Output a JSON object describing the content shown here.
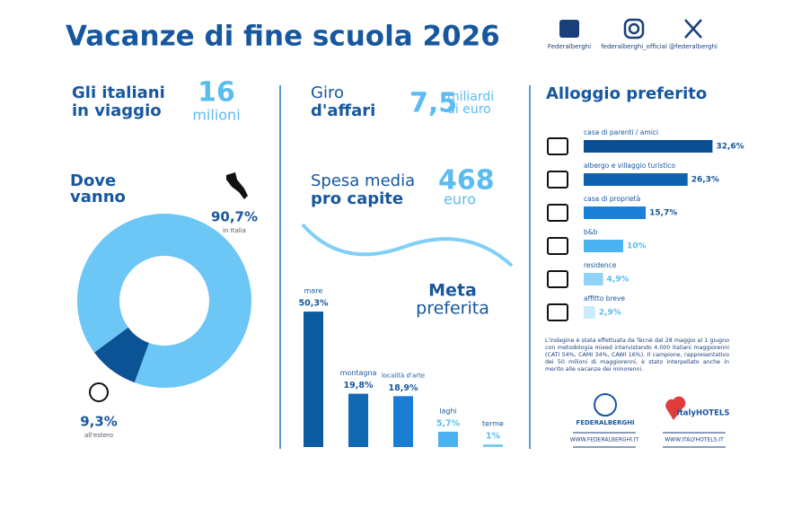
{
  "header": {
    "title": "Vacanze di fine scuola 2026",
    "socials": [
      "Federalberghi",
      "federalberghi_official",
      "@federalberghi"
    ]
  },
  "stats": [
    {
      "label": [
        "Gli italiani",
        "in viaggio"
      ],
      "number": "16",
      "unit": [
        "milioni"
      ]
    },
    {
      "label": [
        "Giro",
        "d'affari"
      ],
      "number": "7,5",
      "unit": [
        "miliardi",
        "di euro"
      ]
    },
    {
      "label": [
        "Spesa media",
        "pro capite"
      ],
      "number": "468",
      "unit": [
        "euro"
      ]
    }
  ],
  "chart_data": [
    {
      "type": "pie",
      "title": [
        "Dove",
        "vanno"
      ],
      "categories": [
        "in Italia",
        "all'estero"
      ],
      "values": [
        90.7,
        9.3
      ],
      "value_labels": [
        "90,7%",
        "9,3%"
      ],
      "colors": [
        "#6cc6f6",
        "#0b5394"
      ]
    },
    {
      "type": "bar",
      "title": [
        "Meta",
        "preferita"
      ],
      "categories": [
        "mare",
        "montagna",
        "località d'arte",
        "laghi",
        "terme"
      ],
      "values": [
        50.3,
        19.8,
        18.9,
        5.7,
        1
      ],
      "value_labels": [
        "50,3%",
        "19,8%",
        "18,9%",
        "5,7%",
        "1%"
      ],
      "colors": [
        "#0b5ba0",
        "#1168b3",
        "#1a7dd3",
        "#4cb1f1",
        "#7ccbf6"
      ]
    },
    {
      "type": "hbar",
      "title": "Alloggio preferito",
      "categories": [
        "casa di parenti / amici",
        "albergo e villaggio turistico",
        "casa di proprietà",
        "b&b",
        "residence",
        "affitto breve"
      ],
      "values": [
        32.6,
        26.3,
        15.7,
        10,
        4.9,
        2.9
      ],
      "value_labels": [
        "32,6%",
        "26,3%",
        "15,7%",
        "10%",
        "4,9%",
        "2,9%"
      ],
      "colors": [
        "#0b4f94",
        "#0f62b0",
        "#1a80d8",
        "#4cb3f2",
        "#8fd3f8",
        "#c9ebfb"
      ]
    }
  ],
  "note": "L'indagine è stata effettuata da Tecnè dal 28 maggio al 1 giugno con metodologia mixed intervistando 4.000 italiani maggiorenni (CATI 54%, CAMI 34%, CAWI 16%). Il campione, rappresentativo dei 50 milioni di maggiorenni, è stato interpellato anche in merito alle vacanze dei minorenni.",
  "logos": [
    {
      "name": "FEDERALBERGHI",
      "url": "WWW.FEDERALBERGHI.IT"
    },
    {
      "name": "ItalyHOTELS",
      "url": "WWW.ITALYHOTELS.IT"
    }
  ]
}
